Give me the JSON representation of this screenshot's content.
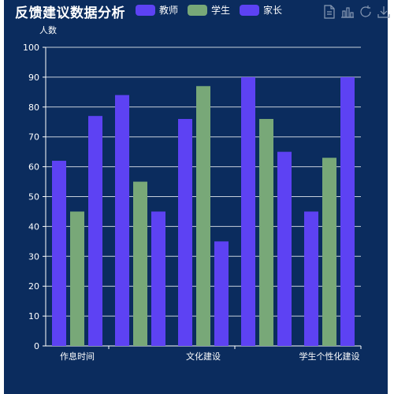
{
  "title": "反馈建议数据分析",
  "toolbox": {
    "icons": [
      "data-view-icon",
      "bar-chart-icon",
      "restore-icon",
      "save-image-icon"
    ]
  },
  "colors": {
    "background": "#0b2c5e",
    "axis": "#ffffff",
    "grid": "#c7cfdb"
  },
  "chart_data": {
    "type": "bar",
    "ylabel": "人数",
    "xlabel": "",
    "ylim": [
      0,
      100
    ],
    "yticks": [
      0,
      10,
      20,
      30,
      40,
      50,
      60,
      70,
      80,
      90,
      100
    ],
    "grid": "horizontal",
    "legend_position": "top",
    "categories": [
      "作息时间",
      "",
      "文化建设",
      "",
      "学生个性化建设"
    ],
    "series": [
      {
        "name": "教师",
        "color": "#5d42f3",
        "values": [
          62,
          84,
          76,
          90,
          45
        ]
      },
      {
        "name": "学生",
        "color": "#78a878",
        "values": [
          45,
          55,
          87,
          76,
          63
        ]
      },
      {
        "name": "家长",
        "color": "#5d42f3",
        "values": [
          77,
          45,
          35,
          65,
          90
        ]
      }
    ]
  }
}
